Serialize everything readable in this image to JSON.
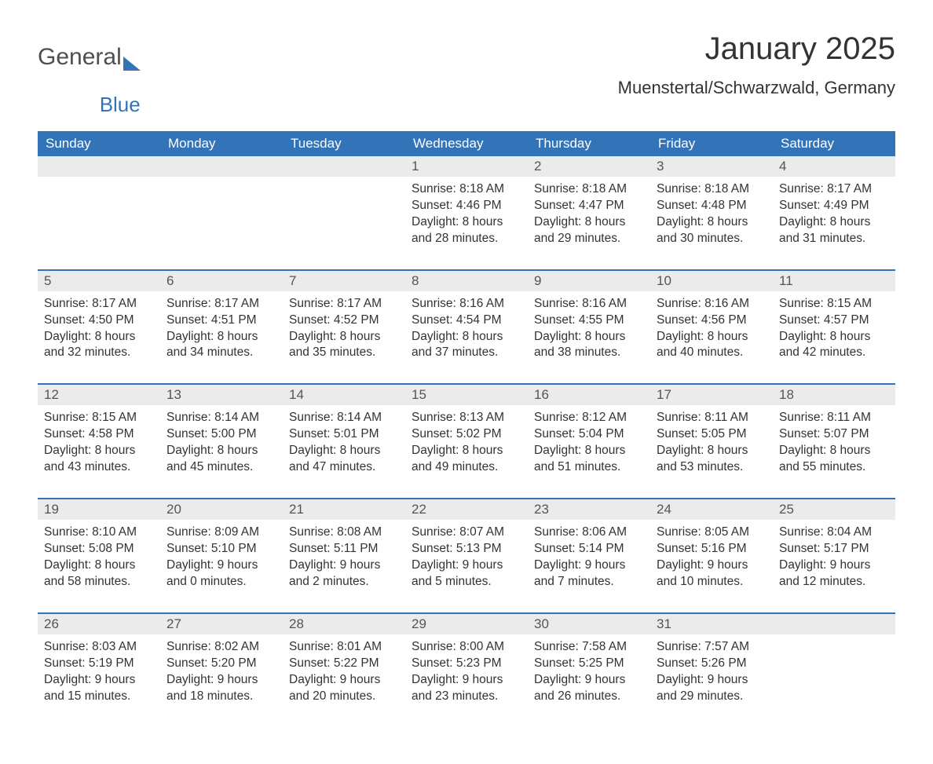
{
  "brand": {
    "word1": "General",
    "word2": "Blue"
  },
  "title": "January 2025",
  "subtitle": "Muenstertal/Schwarzwald, Germany",
  "colors": {
    "primary": "#3274b7",
    "header_row_bg": "#ebebeb",
    "text": "#333333",
    "logo_gray": "#4f4f4f",
    "page_bg": "#ffffff"
  },
  "typography": {
    "title_fontsize": 40,
    "subtitle_fontsize": 22,
    "dayhead_fontsize": 17,
    "body_fontsize": 15.5,
    "font_family": "Arial"
  },
  "field_labels": {
    "sunrise": "Sunrise:",
    "sunset": "Sunset:",
    "daylight": "Daylight:"
  },
  "day_headers": [
    "Sunday",
    "Monday",
    "Tuesday",
    "Wednesday",
    "Thursday",
    "Friday",
    "Saturday"
  ],
  "weeks": [
    [
      null,
      null,
      null,
      {
        "n": "1",
        "sunrise": "8:18 AM",
        "sunset": "4:46 PM",
        "daylight": "8 hours and 28 minutes."
      },
      {
        "n": "2",
        "sunrise": "8:18 AM",
        "sunset": "4:47 PM",
        "daylight": "8 hours and 29 minutes."
      },
      {
        "n": "3",
        "sunrise": "8:18 AM",
        "sunset": "4:48 PM",
        "daylight": "8 hours and 30 minutes."
      },
      {
        "n": "4",
        "sunrise": "8:17 AM",
        "sunset": "4:49 PM",
        "daylight": "8 hours and 31 minutes."
      }
    ],
    [
      {
        "n": "5",
        "sunrise": "8:17 AM",
        "sunset": "4:50 PM",
        "daylight": "8 hours and 32 minutes."
      },
      {
        "n": "6",
        "sunrise": "8:17 AM",
        "sunset": "4:51 PM",
        "daylight": "8 hours and 34 minutes."
      },
      {
        "n": "7",
        "sunrise": "8:17 AM",
        "sunset": "4:52 PM",
        "daylight": "8 hours and 35 minutes."
      },
      {
        "n": "8",
        "sunrise": "8:16 AM",
        "sunset": "4:54 PM",
        "daylight": "8 hours and 37 minutes."
      },
      {
        "n": "9",
        "sunrise": "8:16 AM",
        "sunset": "4:55 PM",
        "daylight": "8 hours and 38 minutes."
      },
      {
        "n": "10",
        "sunrise": "8:16 AM",
        "sunset": "4:56 PM",
        "daylight": "8 hours and 40 minutes."
      },
      {
        "n": "11",
        "sunrise": "8:15 AM",
        "sunset": "4:57 PM",
        "daylight": "8 hours and 42 minutes."
      }
    ],
    [
      {
        "n": "12",
        "sunrise": "8:15 AM",
        "sunset": "4:58 PM",
        "daylight": "8 hours and 43 minutes."
      },
      {
        "n": "13",
        "sunrise": "8:14 AM",
        "sunset": "5:00 PM",
        "daylight": "8 hours and 45 minutes."
      },
      {
        "n": "14",
        "sunrise": "8:14 AM",
        "sunset": "5:01 PM",
        "daylight": "8 hours and 47 minutes."
      },
      {
        "n": "15",
        "sunrise": "8:13 AM",
        "sunset": "5:02 PM",
        "daylight": "8 hours and 49 minutes."
      },
      {
        "n": "16",
        "sunrise": "8:12 AM",
        "sunset": "5:04 PM",
        "daylight": "8 hours and 51 minutes."
      },
      {
        "n": "17",
        "sunrise": "8:11 AM",
        "sunset": "5:05 PM",
        "daylight": "8 hours and 53 minutes."
      },
      {
        "n": "18",
        "sunrise": "8:11 AM",
        "sunset": "5:07 PM",
        "daylight": "8 hours and 55 minutes."
      }
    ],
    [
      {
        "n": "19",
        "sunrise": "8:10 AM",
        "sunset": "5:08 PM",
        "daylight": "8 hours and 58 minutes."
      },
      {
        "n": "20",
        "sunrise": "8:09 AM",
        "sunset": "5:10 PM",
        "daylight": "9 hours and 0 minutes."
      },
      {
        "n": "21",
        "sunrise": "8:08 AM",
        "sunset": "5:11 PM",
        "daylight": "9 hours and 2 minutes."
      },
      {
        "n": "22",
        "sunrise": "8:07 AM",
        "sunset": "5:13 PM",
        "daylight": "9 hours and 5 minutes."
      },
      {
        "n": "23",
        "sunrise": "8:06 AM",
        "sunset": "5:14 PM",
        "daylight": "9 hours and 7 minutes."
      },
      {
        "n": "24",
        "sunrise": "8:05 AM",
        "sunset": "5:16 PM",
        "daylight": "9 hours and 10 minutes."
      },
      {
        "n": "25",
        "sunrise": "8:04 AM",
        "sunset": "5:17 PM",
        "daylight": "9 hours and 12 minutes."
      }
    ],
    [
      {
        "n": "26",
        "sunrise": "8:03 AM",
        "sunset": "5:19 PM",
        "daylight": "9 hours and 15 minutes."
      },
      {
        "n": "27",
        "sunrise": "8:02 AM",
        "sunset": "5:20 PM",
        "daylight": "9 hours and 18 minutes."
      },
      {
        "n": "28",
        "sunrise": "8:01 AM",
        "sunset": "5:22 PM",
        "daylight": "9 hours and 20 minutes."
      },
      {
        "n": "29",
        "sunrise": "8:00 AM",
        "sunset": "5:23 PM",
        "daylight": "9 hours and 23 minutes."
      },
      {
        "n": "30",
        "sunrise": "7:58 AM",
        "sunset": "5:25 PM",
        "daylight": "9 hours and 26 minutes."
      },
      {
        "n": "31",
        "sunrise": "7:57 AM",
        "sunset": "5:26 PM",
        "daylight": "9 hours and 29 minutes."
      },
      null
    ]
  ]
}
